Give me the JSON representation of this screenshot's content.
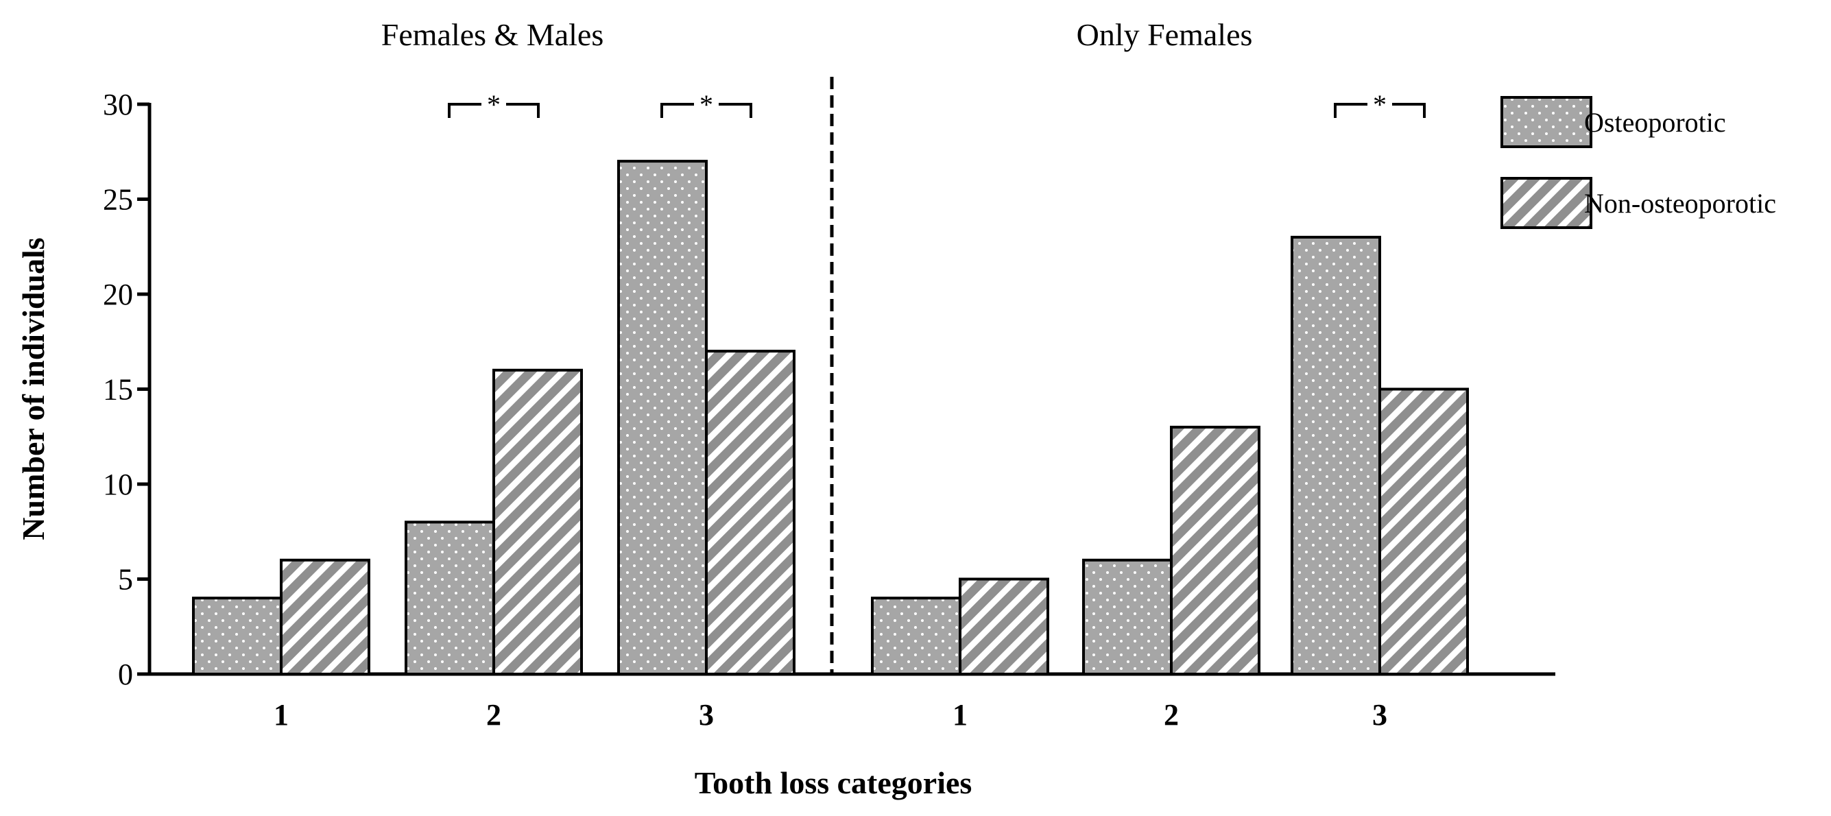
{
  "chart_data": {
    "type": "bar",
    "xlabel": "Tooth loss categories",
    "ylabel": "Number of individuals",
    "ylim": [
      0,
      30
    ],
    "yticks": [
      0,
      5,
      10,
      15,
      20,
      25,
      30
    ],
    "legend": {
      "placement": "top-right",
      "entries": [
        {
          "name": "Osteoporotic",
          "pattern": "dots"
        },
        {
          "name": "Non-osteoporotic",
          "pattern": "diagonal-hatch"
        }
      ]
    },
    "colors": {
      "bar_fill": "#a6a6a6",
      "stroke": "#000000",
      "pattern_light": "#ffffff"
    },
    "panels": [
      {
        "title": "Females & Males",
        "categories": [
          "1",
          "2",
          "3"
        ],
        "series": [
          {
            "name": "Osteoporotic",
            "values": [
              4,
              8,
              27
            ]
          },
          {
            "name": "Non-osteoporotic",
            "values": [
              6,
              16,
              17
            ]
          }
        ],
        "significance": [
          {
            "category": "2",
            "label": "*"
          },
          {
            "category": "3",
            "label": "*"
          }
        ]
      },
      {
        "title": "Only Females",
        "categories": [
          "1",
          "2",
          "3"
        ],
        "series": [
          {
            "name": "Osteoporotic",
            "values": [
              4,
              6,
              23
            ]
          },
          {
            "name": "Non-osteoporotic",
            "values": [
              5,
              13,
              15
            ]
          }
        ],
        "significance": [
          {
            "category": "3",
            "label": "*"
          }
        ]
      }
    ],
    "divider": "dashed-vertical-between-panels",
    "grid": false
  }
}
